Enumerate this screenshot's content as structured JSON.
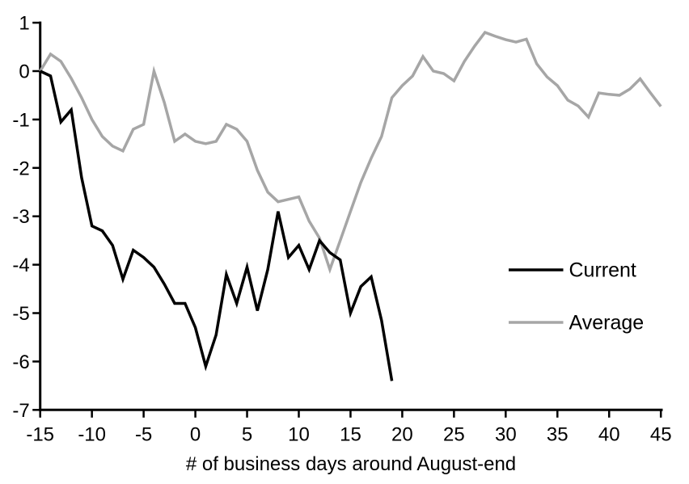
{
  "chart_data": {
    "type": "line",
    "title": "",
    "xlabel": "# of business days around August-end",
    "ylabel": "",
    "xlim": [
      -15,
      45
    ],
    "ylim": [
      -7,
      1
    ],
    "x_ticks": [
      -15,
      -10,
      -5,
      0,
      5,
      10,
      15,
      20,
      25,
      30,
      35,
      40,
      45
    ],
    "y_ticks": [
      1,
      0,
      -1,
      -2,
      -3,
      -4,
      -5,
      -6,
      -7
    ],
    "grid": false,
    "legend_position": "right-middle",
    "axis_color": "#000000",
    "series": [
      {
        "name": "Current",
        "color": "#000000",
        "x": [
          -15,
          -14,
          -13,
          -12,
          -11,
          -10,
          -9,
          -8,
          -7,
          -6,
          -5,
          -4,
          -3,
          -2,
          -1,
          0,
          1,
          2,
          3,
          4,
          5,
          6,
          7,
          8,
          9,
          10,
          11,
          12,
          13,
          14,
          15,
          16,
          17,
          18,
          19
        ],
        "values": [
          0,
          -0.1,
          -1.05,
          -0.8,
          -2.2,
          -3.2,
          -3.3,
          -3.6,
          -4.3,
          -3.7,
          -3.85,
          -4.05,
          -4.4,
          -4.8,
          -4.8,
          -5.3,
          -6.1,
          -5.45,
          -4.2,
          -4.8,
          -4.05,
          -4.95,
          -4.1,
          -2.9,
          -3.85,
          -3.6,
          -4.1,
          -3.5,
          -3.75,
          -3.9,
          -5.0,
          -4.45,
          -4.25,
          -5.15,
          -6.4
        ]
      },
      {
        "name": "Average",
        "color": "#a6a6a6",
        "x": [
          -15,
          -14,
          -13,
          -12,
          -11,
          -10,
          -9,
          -8,
          -7,
          -6,
          -5,
          -4,
          -3,
          -2,
          -1,
          0,
          1,
          2,
          3,
          4,
          5,
          6,
          7,
          8,
          9,
          10,
          11,
          12,
          13,
          14,
          15,
          16,
          17,
          18,
          19,
          20,
          21,
          22,
          23,
          24,
          25,
          26,
          27,
          28,
          29,
          30,
          31,
          32,
          33,
          34,
          35,
          36,
          37,
          38,
          39,
          40,
          41,
          42,
          43,
          44,
          45
        ],
        "values": [
          0,
          0.35,
          0.2,
          -0.15,
          -0.55,
          -1.0,
          -1.35,
          -1.55,
          -1.65,
          -1.2,
          -1.1,
          0,
          -0.65,
          -1.45,
          -1.3,
          -1.45,
          -1.5,
          -1.45,
          -1.1,
          -1.2,
          -1.45,
          -2.05,
          -2.5,
          -2.7,
          -2.65,
          -2.6,
          -3.1,
          -3.45,
          -4.1,
          -3.5,
          -2.9,
          -2.3,
          -1.8,
          -1.35,
          -0.55,
          -0.3,
          -0.1,
          0.3,
          0,
          -0.05,
          -0.2,
          0.2,
          0.52,
          0.8,
          0.72,
          0.65,
          0.6,
          0.66,
          0.15,
          -0.12,
          -0.3,
          -0.6,
          -0.72,
          -0.95,
          -0.45,
          -0.48,
          -0.5,
          -0.37,
          -0.16,
          -0.45,
          -0.73
        ]
      }
    ]
  }
}
